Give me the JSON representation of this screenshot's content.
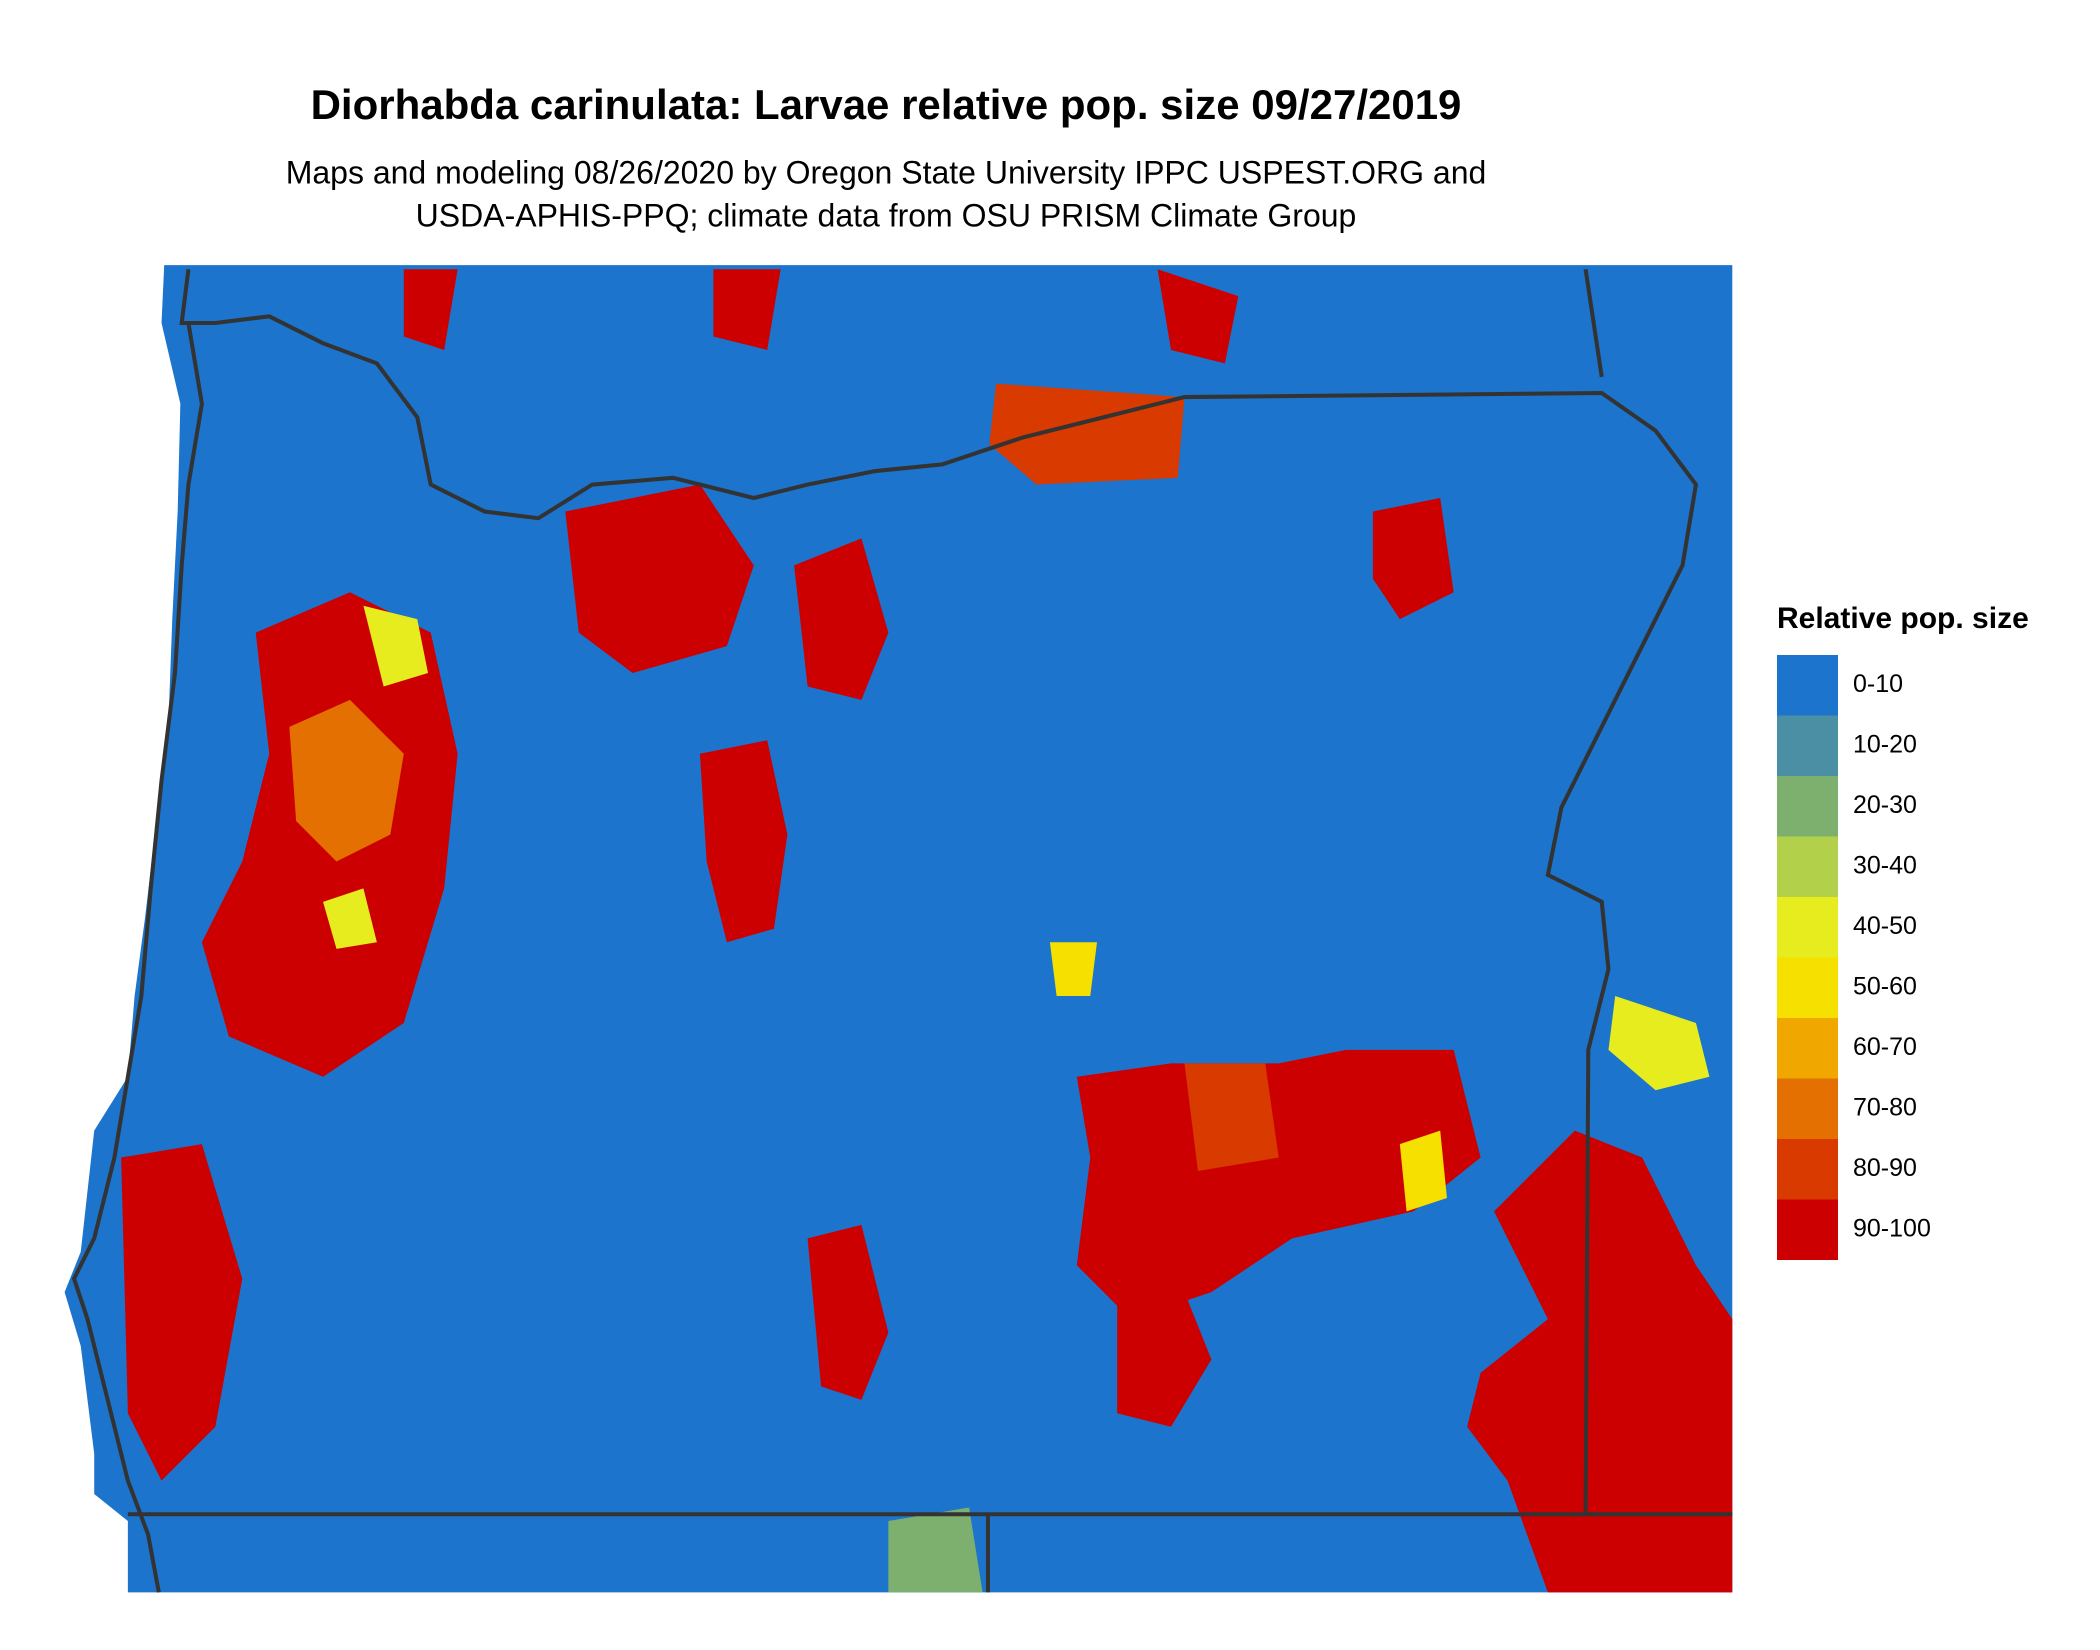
{
  "title": "Diorhabda carinulata: Larvae relative pop. size 09/27/2019",
  "subtitle": [
    "Maps and modeling 08/26/2020 by Oregon State University IPPC USPEST.ORG and",
    "USDA-APHIS-PPQ; climate data from OSU PRISM Climate Group"
  ],
  "legend": {
    "title": "Relative pop. size",
    "items": [
      {
        "label": "0-10",
        "color": "#1c74cc"
      },
      {
        "label": "10-20",
        "color": "#4a8fa3"
      },
      {
        "label": "20-30",
        "color": "#7daf6f"
      },
      {
        "label": "30-40",
        "color": "#b2d04a"
      },
      {
        "label": "40-50",
        "color": "#e6ec1d"
      },
      {
        "label": "50-60",
        "color": "#f5e000"
      },
      {
        "label": "60-70",
        "color": "#f0a800"
      },
      {
        "label": "70-80",
        "color": "#e37000"
      },
      {
        "label": "80-90",
        "color": "#d83a00"
      },
      {
        "label": "90-100",
        "color": "#cc0000"
      }
    ]
  }
}
